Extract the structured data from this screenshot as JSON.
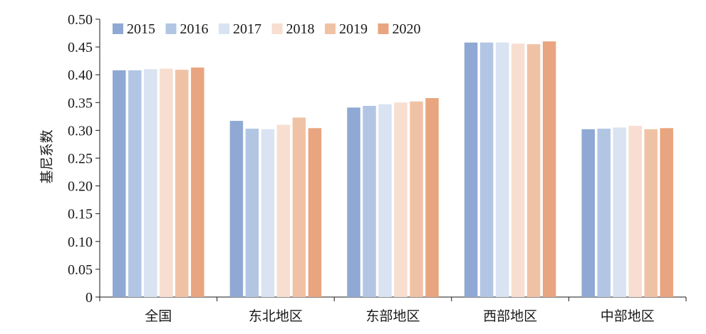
{
  "chart_data": {
    "type": "bar",
    "title": "",
    "xlabel": "",
    "ylabel": "基尼系数",
    "ylim": [
      0,
      0.5
    ],
    "yticks": [
      "0",
      "0.05",
      "0.10",
      "0.15",
      "0.20",
      "0.25",
      "0.30",
      "0.35",
      "0.40",
      "0.45",
      "0.50"
    ],
    "grid": false,
    "legend_position": "top-left",
    "categories": [
      "全国",
      "东北地区",
      "东部地区",
      "西部地区",
      "中部地区"
    ],
    "series": [
      {
        "name": "2015",
        "color": "#8FA9D4",
        "values": [
          0.408,
          0.317,
          0.341,
          0.458,
          0.302
        ]
      },
      {
        "name": "2016",
        "color": "#B2C6E4",
        "values": [
          0.408,
          0.303,
          0.344,
          0.458,
          0.303
        ]
      },
      {
        "name": "2017",
        "color": "#D9E3F2",
        "values": [
          0.41,
          0.302,
          0.347,
          0.458,
          0.305
        ]
      },
      {
        "name": "2018",
        "color": "#F7DED0",
        "values": [
          0.411,
          0.31,
          0.35,
          0.456,
          0.308
        ]
      },
      {
        "name": "2019",
        "color": "#F0C2A5",
        "values": [
          0.409,
          0.323,
          0.352,
          0.455,
          0.302
        ]
      },
      {
        "name": "2020",
        "color": "#E9A57F",
        "values": [
          0.413,
          0.304,
          0.358,
          0.46,
          0.304
        ]
      }
    ]
  }
}
